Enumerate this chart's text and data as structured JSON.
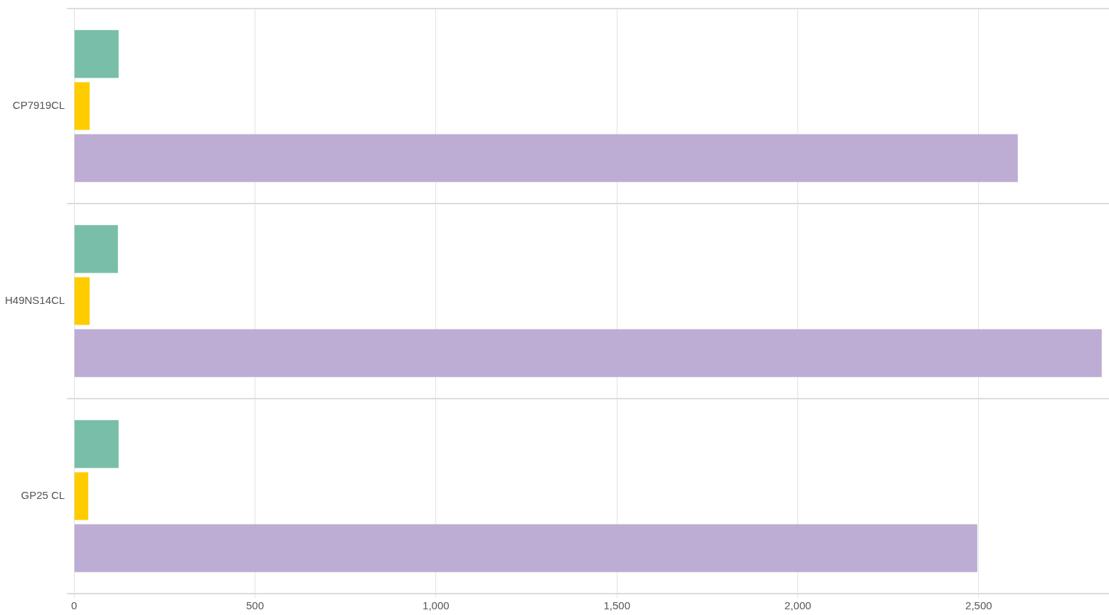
{
  "chart_data": {
    "type": "bar",
    "orientation": "horizontal",
    "categories": [
      "CP7919CL",
      "H49NS14CL",
      "GP25 CL"
    ],
    "series": [
      {
        "color": "#78bea8",
        "values": [
          123,
          121,
          123
        ]
      },
      {
        "color": "#ffcc00",
        "values": [
          43,
          43,
          39
        ]
      },
      {
        "color": "#bdadd4",
        "values": [
          2608,
          2840,
          2496
        ]
      }
    ],
    "xlim": [
      0,
      2860
    ],
    "xticks": [
      {
        "value": 0,
        "label": "0"
      },
      {
        "value": 500,
        "label": "500"
      },
      {
        "value": 1000,
        "label": "1,000"
      },
      {
        "value": 1500,
        "label": "1,500"
      },
      {
        "value": 2000,
        "label": "2,000"
      },
      {
        "value": 2500,
        "label": "2,500"
      }
    ],
    "grid": true
  }
}
